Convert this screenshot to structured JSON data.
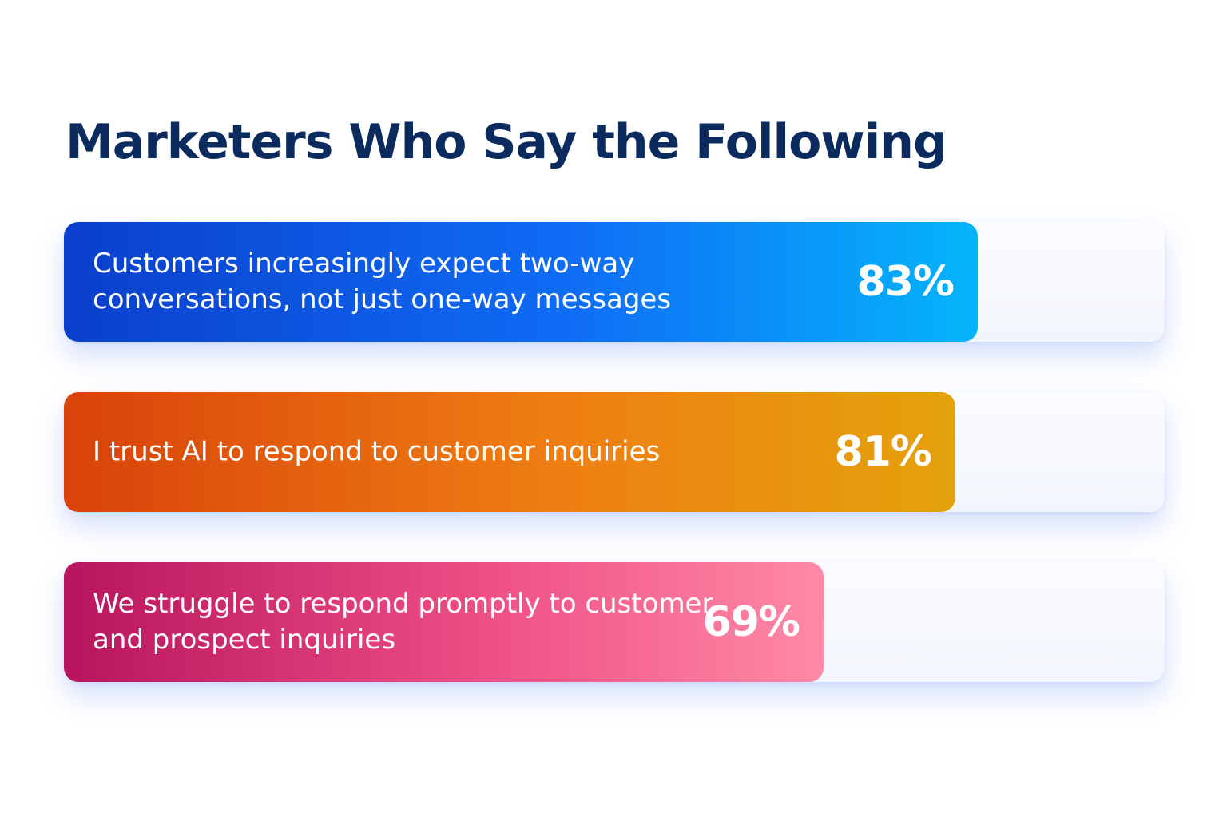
{
  "chart_data": {
    "type": "bar",
    "orientation": "horizontal",
    "title": "Marketers Who Say the Following",
    "unit": "%",
    "xlim": [
      0,
      100
    ],
    "categories": [
      "Customers increasingly expect two-way conversations, not just one-way messages",
      "I trust AI to respond to customer inquiries",
      "We struggle to respond promptly to customer and prospect inquiries"
    ],
    "values": [
      83,
      81,
      69
    ],
    "value_labels": [
      "83%",
      "81%",
      "69%"
    ],
    "bar_gradients": [
      [
        "#0a3fcb",
        "#0f6cf5",
        "#05b5fb"
      ],
      [
        "#d9420a",
        "#ef7e13",
        "#e4a20c"
      ],
      [
        "#b8145e",
        "#ee4e85",
        "#ff8aa6"
      ]
    ],
    "track_color": "#f5f7fd",
    "grid": false,
    "legend": "none"
  }
}
